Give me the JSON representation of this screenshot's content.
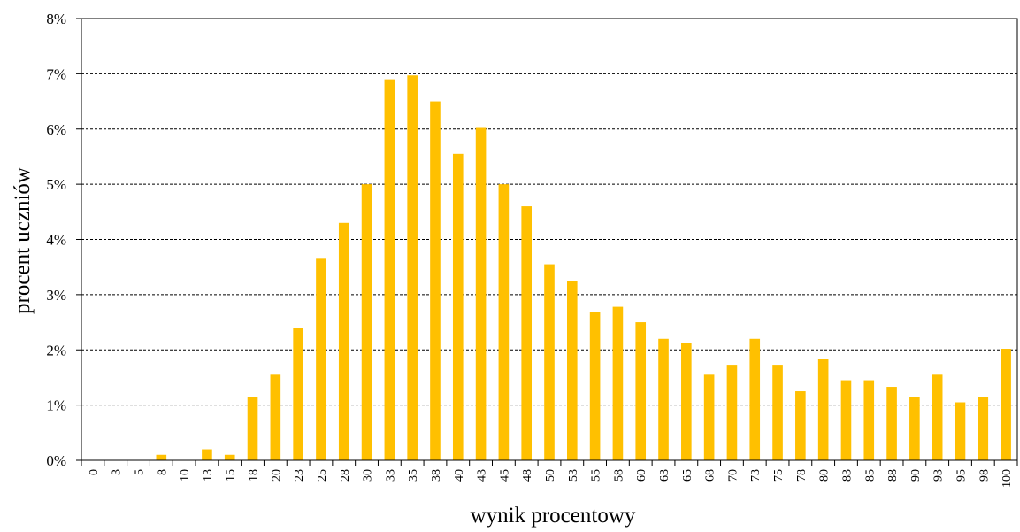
{
  "chart_data": {
    "type": "bar",
    "title": "",
    "xlabel": "wynik procentowy",
    "ylabel": "procent uczniów",
    "ylim": [
      0,
      8
    ],
    "yticks": [
      "0%",
      "1%",
      "2%",
      "3%",
      "4%",
      "5%",
      "6%",
      "7%",
      "8%"
    ],
    "grid": "horizontal dashed",
    "bar_color": "#ffc000",
    "categories": [
      "0",
      "3",
      "5",
      "8",
      "10",
      "13",
      "15",
      "18",
      "20",
      "23",
      "25",
      "28",
      "30",
      "33",
      "35",
      "38",
      "40",
      "43",
      "45",
      "48",
      "50",
      "53",
      "55",
      "58",
      "60",
      "63",
      "65",
      "68",
      "70",
      "73",
      "75",
      "78",
      "80",
      "83",
      "85",
      "88",
      "90",
      "93",
      "95",
      "98",
      "100"
    ],
    "values": [
      0,
      0,
      0,
      0.1,
      0,
      0.2,
      0.1,
      1.15,
      1.55,
      2.4,
      3.65,
      4.3,
      5.0,
      6.9,
      6.97,
      6.5,
      5.55,
      6.02,
      5.0,
      4.6,
      3.55,
      3.25,
      2.68,
      2.78,
      2.5,
      2.2,
      2.12,
      1.55,
      1.73,
      2.2,
      1.73,
      1.25,
      1.83,
      1.45,
      1.45,
      1.33,
      1.15,
      1.55,
      1.05,
      1.15,
      2.02
    ]
  }
}
